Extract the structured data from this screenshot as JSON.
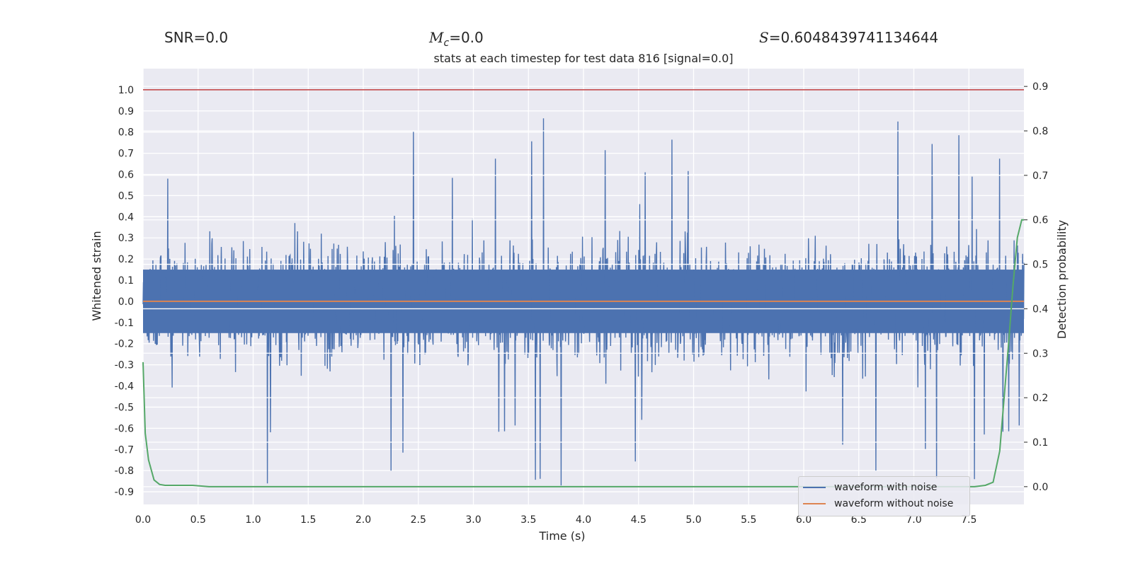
{
  "header": {
    "snr": "SNR=0.0",
    "mc_symbol": "M",
    "mc_sub": "c",
    "mc_value": "=0.0",
    "s_symbol": "S",
    "s_value": "=0.6048439741134644"
  },
  "chart_data": {
    "type": "line",
    "title": "stats at each timestep for test data 816 [signal=0.0]",
    "xlabel": "Time (s)",
    "ylabel": "Whitened strain",
    "y2label": "Detection probability",
    "xlim": [
      0.0,
      8.0
    ],
    "ylim": [
      -0.96,
      1.1
    ],
    "y2lim": [
      -0.04,
      0.94
    ],
    "xticks": [
      "0.0",
      "0.5",
      "1.0",
      "1.5",
      "2.0",
      "2.5",
      "3.0",
      "3.5",
      "4.0",
      "4.5",
      "5.0",
      "5.5",
      "6.0",
      "6.5",
      "7.0",
      "7.5"
    ],
    "yticks": [
      "1.0",
      "0.9",
      "0.8",
      "0.7",
      "0.6",
      "0.5",
      "0.4",
      "0.3",
      "0.2",
      "0.1",
      "0.0",
      "-0.1",
      "-0.2",
      "-0.3",
      "-0.4",
      "-0.5",
      "-0.6",
      "-0.7",
      "-0.8",
      "-0.9"
    ],
    "y2ticks": [
      "0.9",
      "0.8",
      "0.7",
      "0.6",
      "0.5",
      "0.4",
      "0.3",
      "0.2",
      "0.1",
      "0.0"
    ],
    "grid": true,
    "legend_position": "lower-right",
    "hline": {
      "y": 1.0,
      "color": "#c03d3e"
    },
    "series": [
      {
        "name": "waveform with noise",
        "color": "#4c72b0",
        "axis": "left",
        "kind": "noise",
        "envelope": [
          -0.87,
          1.0
        ]
      },
      {
        "name": "waveform without noise",
        "color": "#dd8452",
        "axis": "left",
        "x": [
          0.0,
          8.0
        ],
        "values": [
          0.0,
          0.0
        ]
      },
      {
        "name": "",
        "color": "#55a868",
        "axis": "right",
        "x": [
          0.0,
          0.02,
          0.05,
          0.1,
          0.15,
          0.2,
          0.3,
          0.45,
          0.6,
          1.0,
          2.0,
          3.0,
          4.0,
          5.0,
          6.0,
          7.0,
          7.4,
          7.55,
          7.65,
          7.72,
          7.78,
          7.82,
          7.86,
          7.9,
          7.94,
          7.98,
          8.0
        ],
        "values": [
          0.28,
          0.12,
          0.06,
          0.015,
          0.005,
          0.003,
          0.003,
          0.003,
          0.0,
          0.0,
          0.0,
          0.0,
          0.0,
          0.0,
          0.0,
          0.0,
          0.0,
          0.0,
          0.003,
          0.01,
          0.08,
          0.2,
          0.32,
          0.45,
          0.56,
          0.6,
          0.6
        ]
      }
    ]
  },
  "legend": {
    "items": [
      {
        "label": "waveform with noise",
        "color": "#4c72b0"
      },
      {
        "label": "waveform without noise",
        "color": "#dd8452"
      }
    ]
  }
}
